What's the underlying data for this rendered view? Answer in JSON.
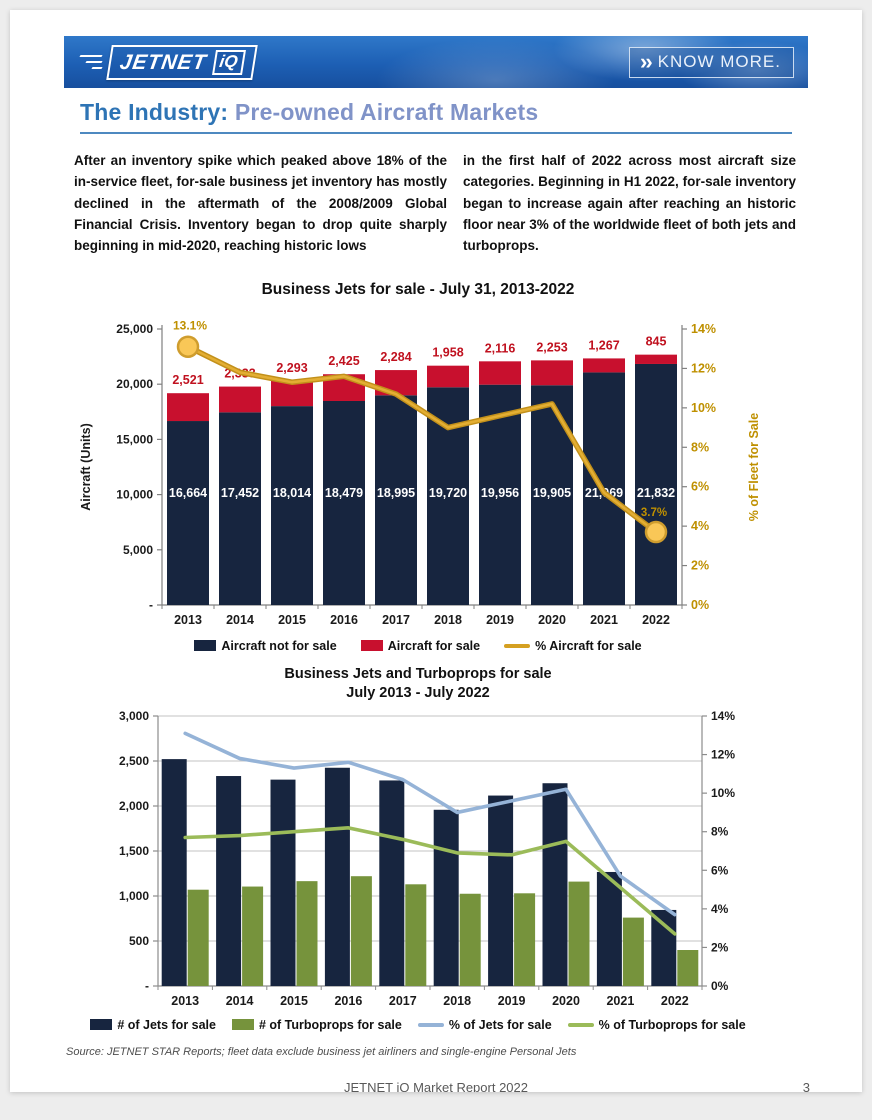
{
  "header": {
    "logo_jetnet": "JETNET",
    "logo_iq": "iQ",
    "cta_chevrons": "››",
    "cta_label": "KNOW MORE.",
    "banner_color": "#1d5fb4"
  },
  "title": {
    "prefix": "The Industry:",
    "rest": "Pre-owned Aircraft Markets",
    "prefix_color": "#2e74b5",
    "rest_color": "#8093c8"
  },
  "intro": {
    "col1": "After an inventory spike which peaked above 18% of the in-service fleet, for-sale business jet inventory has mostly declined in the aftermath of the 2008/2009 Global Financial Crisis. Inventory began to drop quite sharply beginning in mid-2020, reaching historic lows",
    "col2": "in the first half of 2022 across most aircraft size categories. Beginning in H1 2022, for-sale inventory began to increase again after reaching an historic floor near 3% of the worldwide fleet of both jets and turboprops."
  },
  "chart_data": [
    {
      "type": "bar",
      "subtype": "stacked-bars-with-line-dual-axis",
      "title": "Business Jets for sale - July 31, 2013-2022",
      "categories": [
        "2013",
        "2014",
        "2015",
        "2016",
        "2017",
        "2018",
        "2019",
        "2020",
        "2021",
        "2022"
      ],
      "series": [
        {
          "name": "Aircraft not for sale",
          "kind": "bar-stack",
          "color": "#17253f",
          "values": [
            16664,
            17452,
            18014,
            18479,
            18995,
            19720,
            19956,
            19905,
            21069,
            21832
          ]
        },
        {
          "name": "Aircraft for sale",
          "kind": "bar-stack",
          "color": "#c8102e",
          "values": [
            2521,
            2333,
            2293,
            2425,
            2284,
            1958,
            2116,
            2253,
            1267,
            845
          ]
        },
        {
          "name": "% Aircraft for sale",
          "kind": "line",
          "axis": "right",
          "color": "#d5a021",
          "values": [
            13.1,
            11.8,
            11.3,
            11.6,
            10.7,
            9.0,
            9.6,
            10.2,
            5.7,
            3.7
          ]
        }
      ],
      "ylabel_left": "Aircraft (Units)",
      "ylabel_right": "% of Fleet for Sale",
      "ylim_left": [
        0,
        25000
      ],
      "ylim_right": [
        0,
        14
      ],
      "yticks_left": [
        "25,000",
        "20,000",
        "15,000",
        "10,000",
        "5,000",
        "-"
      ],
      "yticks_right": [
        "14%",
        "12%",
        "10%",
        "8%",
        "6%",
        "4%",
        "2%",
        "0%"
      ],
      "endpoint_labels": {
        "first": "13.1%",
        "last": "3.7%"
      },
      "grid": false,
      "legend_position": "bottom"
    },
    {
      "type": "bar",
      "subtype": "grouped-bars-with-lines-dual-axis",
      "title_line1": "Business Jets and Turboprops for sale",
      "title_line2": "July 2013 -  July 2022",
      "categories": [
        "2013",
        "2014",
        "2015",
        "2016",
        "2017",
        "2018",
        "2019",
        "2020",
        "2021",
        "2022"
      ],
      "series": [
        {
          "name": "# of Jets for sale",
          "kind": "bar",
          "color": "#17253f",
          "values": [
            2521,
            2333,
            2293,
            2425,
            2284,
            1958,
            2116,
            2253,
            1267,
            845
          ]
        },
        {
          "name": "# of Turboprops for sale",
          "kind": "bar",
          "color": "#76933c",
          "values": [
            1070,
            1105,
            1165,
            1220,
            1130,
            1025,
            1030,
            1160,
            760,
            400
          ]
        },
        {
          "name": "% of Jets for sale",
          "kind": "line",
          "axis": "right",
          "color": "#95b3d7",
          "values": [
            13.1,
            11.8,
            11.3,
            11.6,
            10.7,
            9.0,
            9.6,
            10.2,
            5.7,
            3.7
          ]
        },
        {
          "name": "% of Turboprops for sale",
          "kind": "line",
          "axis": "right",
          "color": "#9bbb59",
          "values": [
            7.7,
            7.8,
            8.0,
            8.2,
            7.6,
            6.9,
            6.8,
            7.5,
            5.1,
            2.7
          ]
        }
      ],
      "ylim_left": [
        0,
        3000
      ],
      "ylim_right": [
        0,
        14
      ],
      "yticks_left": [
        "3,000",
        "2,500",
        "2,000",
        "1,500",
        "1,000",
        "500",
        "-"
      ],
      "yticks_right": [
        "14%",
        "12%",
        "10%",
        "8%",
        "6%",
        "4%",
        "2%",
        "0%"
      ],
      "grid": true,
      "legend_position": "bottom"
    }
  ],
  "page": {
    "source": "Source: JETNET STAR Reports; fleet data exclude business jet airliners and single-engine Personal Jets",
    "footer": "JETNET iQ Market Report 2022",
    "number": "3"
  }
}
